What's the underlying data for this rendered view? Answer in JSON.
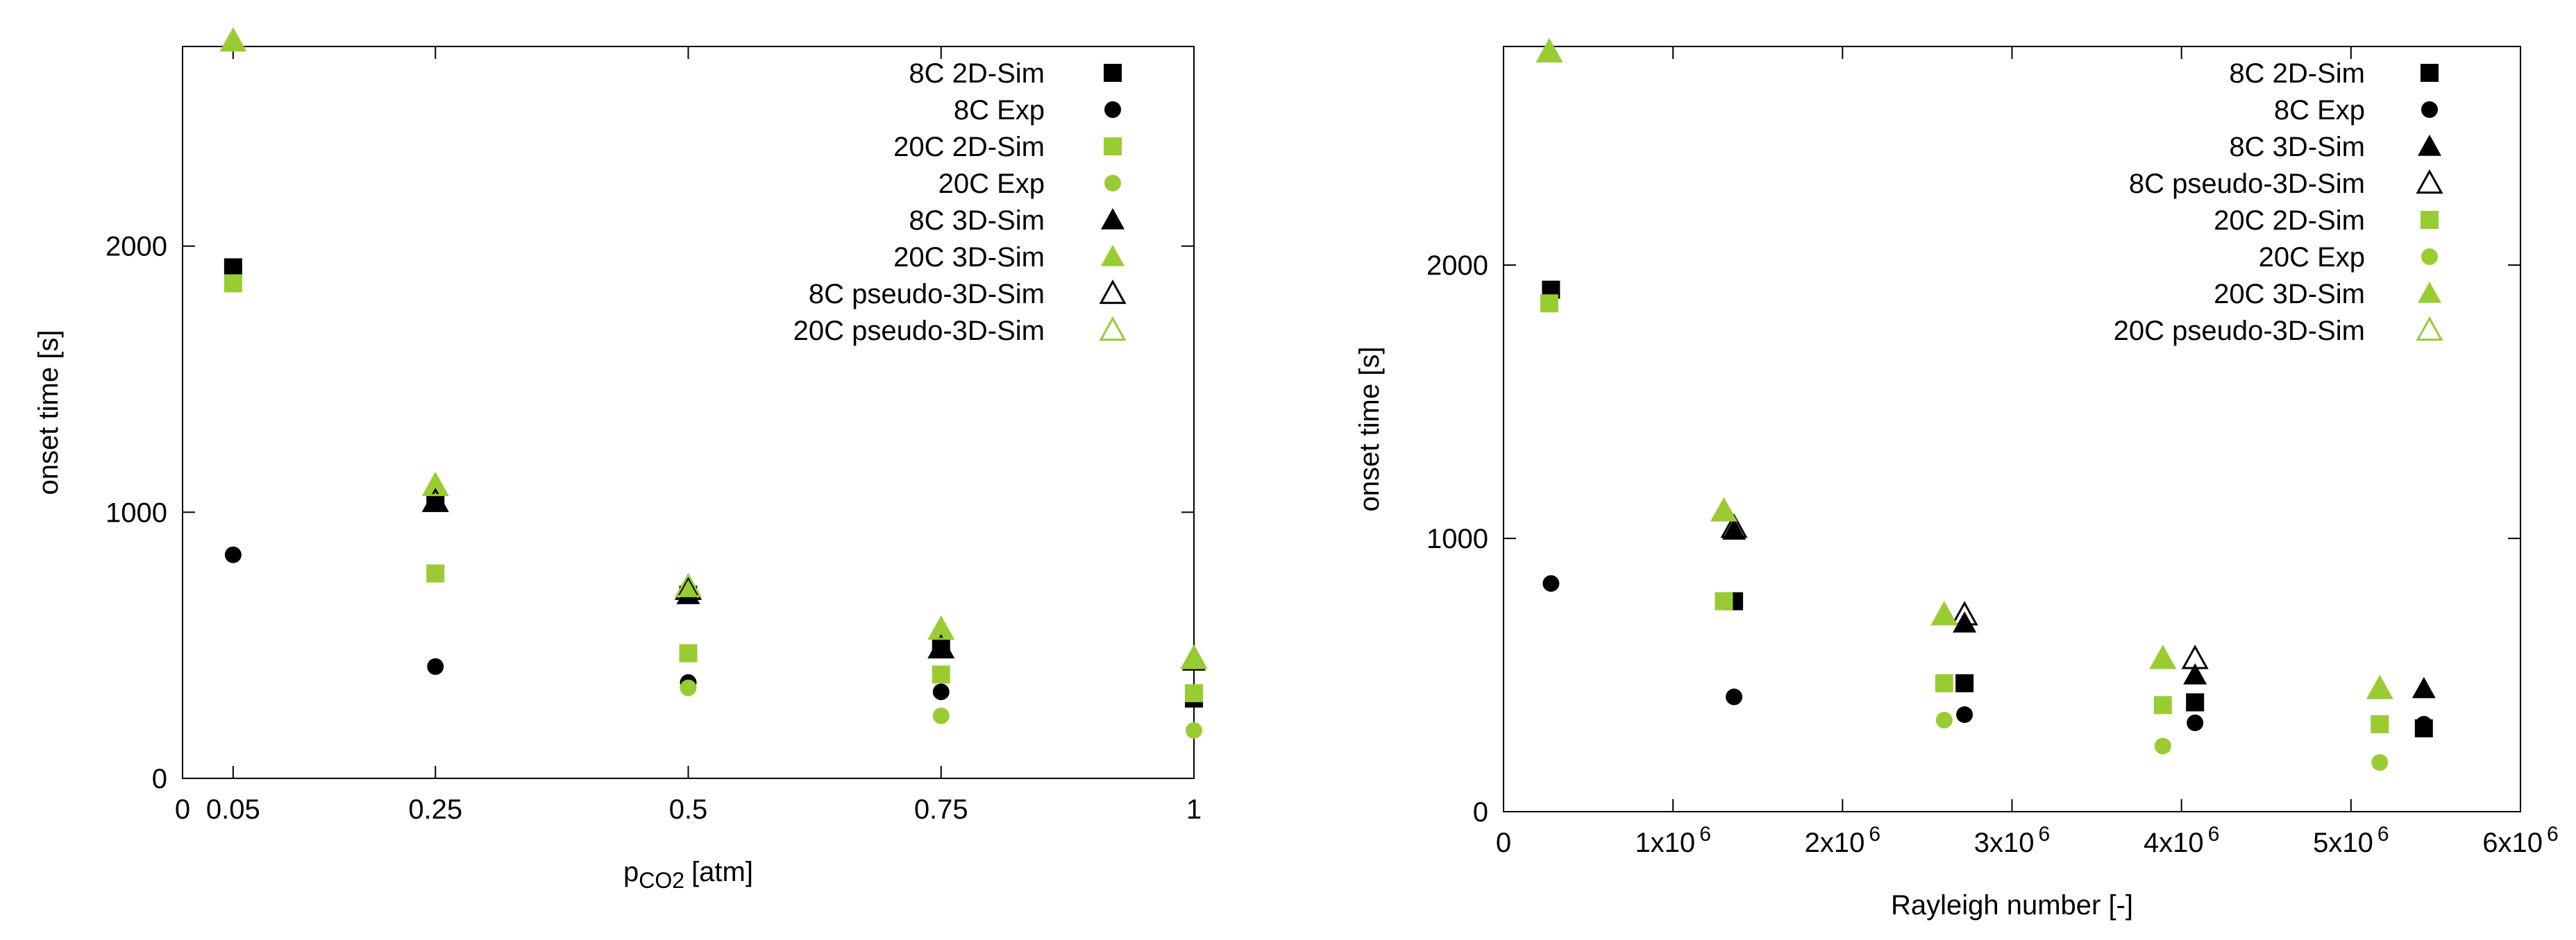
{
  "colors": {
    "black": "#000000",
    "green": "#99cc33"
  },
  "chart_data": [
    {
      "type": "scatter",
      "xlabel": "p",
      "xlabel_sub": "CO2",
      "xlabel_unit": "[atm]",
      "ylabel": "onset time [s]",
      "xlim": [
        0,
        1
      ],
      "ylim": [
        0,
        2750
      ],
      "xticks": [
        0,
        0.05,
        0.25,
        0.5,
        0.75,
        1
      ],
      "xtick_labels": [
        "0",
        "0.05",
        "0.25",
        "0.5",
        "0.75",
        "1"
      ],
      "yticks": [
        0,
        1000,
        2000
      ],
      "ytick_labels": [
        "0",
        "1000",
        "2000"
      ],
      "grid": false,
      "legend": "top-right",
      "series": [
        {
          "name": "8C 2D-Sim",
          "marker": "square",
          "color": "#000000",
          "x": [
            0.05,
            0.25,
            0.5,
            0.75,
            1
          ],
          "y": [
            1920,
            1040,
            690,
            490,
            300
          ]
        },
        {
          "name": "8C Exp",
          "marker": "circle",
          "color": "#000000",
          "x": [
            0.05,
            0.25,
            0.5,
            0.75,
            1
          ],
          "y": [
            840,
            420,
            360,
            325,
            320
          ]
        },
        {
          "name": "20C 2D-Sim",
          "marker": "square",
          "color": "#99cc33",
          "x": [
            0.05,
            0.25,
            0.5,
            0.75,
            1
          ],
          "y": [
            1860,
            770,
            470,
            390,
            320
          ]
        },
        {
          "name": "20C Exp",
          "marker": "circle",
          "color": "#99cc33",
          "x": [
            0.5,
            0.75,
            1
          ],
          "y": [
            340,
            235,
            180
          ]
        },
        {
          "name": "8C 3D-Sim",
          "marker": "triangle",
          "color": "#000000",
          "x": [
            0.25,
            0.5,
            0.75,
            1
          ],
          "y": [
            1040,
            690,
            490,
            440
          ]
        },
        {
          "name": "20C 3D-Sim",
          "marker": "triangle",
          "color": "#99cc33",
          "x": [
            0.05,
            0.25,
            0.5,
            0.75,
            1
          ],
          "y": [
            2770,
            1100,
            720,
            560,
            450
          ]
        },
        {
          "name": "8C pseudo-3D-Sim",
          "marker": "triangle-open",
          "color": "#000000",
          "x": [
            0.25,
            0.5,
            0.75,
            1
          ],
          "y": [
            1040,
            710,
            490,
            450
          ]
        },
        {
          "name": "20C pseudo-3D-Sim",
          "marker": "triangle-open",
          "color": "#99cc33",
          "x": [
            0.05,
            0.25,
            0.5,
            0.75,
            1
          ],
          "y": [
            2770,
            1100,
            720,
            560,
            450
          ]
        }
      ]
    },
    {
      "type": "scatter",
      "xlabel": "Rayleigh number [-]",
      "ylabel": "onset time [s]",
      "xlim": [
        0,
        6000000
      ],
      "ylim": [
        0,
        2800
      ],
      "xticks": [
        0,
        1000000,
        2000000,
        3000000,
        4000000,
        5000000,
        6000000
      ],
      "xtick_labels": [
        "0",
        "1x10",
        "2x10",
        "3x10",
        "4x10",
        "5x10",
        "6x10"
      ],
      "xtick_exponent": "6",
      "yticks": [
        0,
        1000,
        2000
      ],
      "ytick_labels": [
        "0",
        "1000",
        "2000"
      ],
      "grid": false,
      "legend": "top-right",
      "series": [
        {
          "name": "8C 2D-Sim",
          "marker": "square",
          "color": "#000000",
          "x": [
            280000,
            1360000,
            2720000,
            4080000,
            5430000
          ],
          "y": [
            1910,
            770,
            470,
            400,
            305
          ]
        },
        {
          "name": "8C Exp",
          "marker": "circle",
          "color": "#000000",
          "x": [
            280000,
            1360000,
            2720000,
            4080000,
            5430000
          ],
          "y": [
            835,
            420,
            355,
            325,
            320
          ]
        },
        {
          "name": "8C 3D-Sim",
          "marker": "triangle",
          "color": "#000000",
          "x": [
            1360000,
            2720000,
            4080000,
            5430000
          ],
          "y": [
            1030,
            690,
            500,
            450
          ]
        },
        {
          "name": "8C pseudo-3D-Sim",
          "marker": "triangle-open",
          "color": "#000000",
          "x": [
            1360000,
            2720000,
            4080000
          ],
          "y": [
            1040,
            720,
            560
          ]
        },
        {
          "name": "20C 2D-Sim",
          "marker": "square",
          "color": "#99cc33",
          "x": [
            270000,
            1300000,
            2600000,
            3890000,
            5170000
          ],
          "y": [
            1860,
            770,
            470,
            390,
            320
          ]
        },
        {
          "name": "20C Exp",
          "marker": "circle",
          "color": "#99cc33",
          "x": [
            2600000,
            3890000,
            5170000
          ],
          "y": [
            335,
            240,
            180
          ]
        },
        {
          "name": "20C 3D-Sim",
          "marker": "triangle",
          "color": "#99cc33",
          "x": [
            270000,
            1300000,
            2600000,
            3890000,
            5170000
          ],
          "y": [
            2780,
            1100,
            720,
            560,
            450
          ]
        },
        {
          "name": "20C pseudo-3D-Sim",
          "marker": "triangle-open",
          "color": "#99cc33",
          "x": [
            270000,
            1300000,
            2600000,
            3890000,
            5170000
          ],
          "y": [
            2780,
            1100,
            720,
            560,
            450
          ]
        }
      ]
    }
  ]
}
